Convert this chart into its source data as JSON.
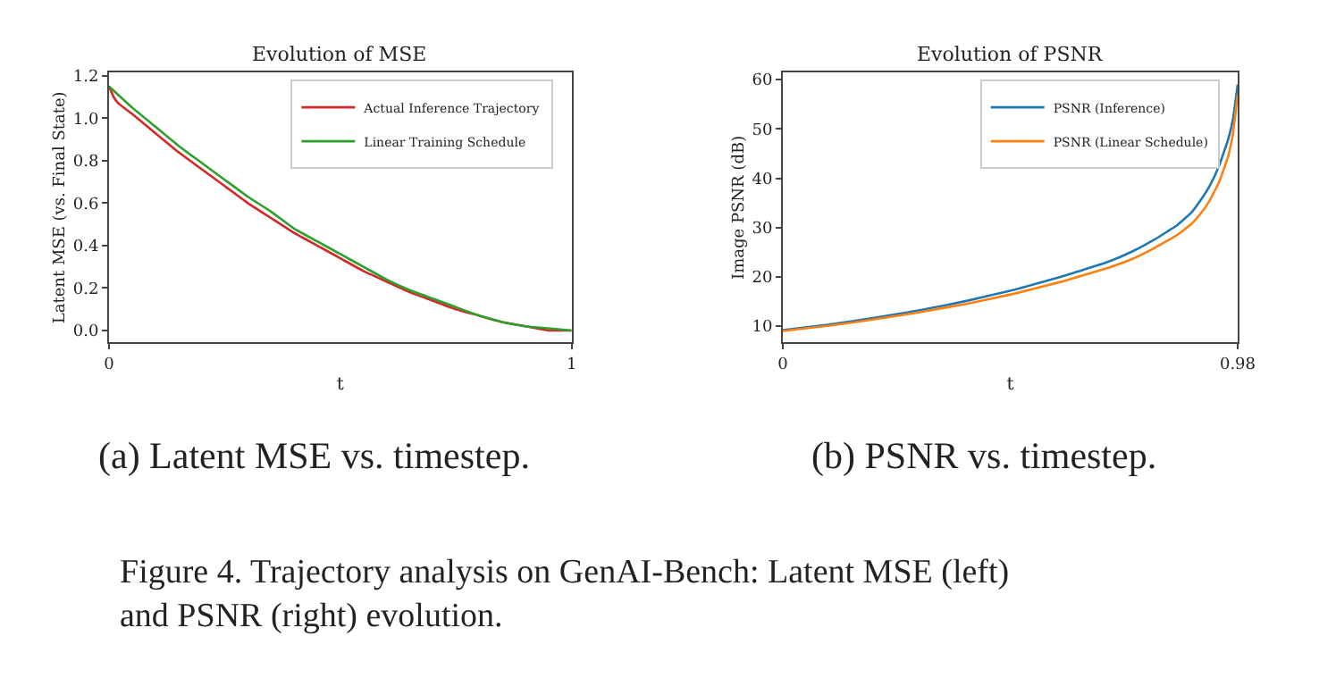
{
  "chart_data": [
    {
      "type": "line",
      "title": "Evolution of MSE",
      "xlabel": "t",
      "ylabel": "Latent MSE (vs. Final State)",
      "xlim": [
        0,
        1
      ],
      "xticks": [
        0,
        1
      ],
      "ylim": [
        -0.056,
        1.214
      ],
      "yticks": [
        {
          "value": 0,
          "label": "0.0"
        },
        0.2,
        0.4,
        0.6,
        0.8,
        {
          "value": 1,
          "label": "1.0"
        },
        1.2
      ],
      "legend": "top right",
      "series": [
        {
          "name": "Actual Inference Trajectory",
          "color": "#d62728",
          "x": [
            0,
            0.01,
            0.02,
            0.05,
            0.1,
            0.15,
            0.2,
            0.25,
            0.3,
            0.35,
            0.4,
            0.45,
            0.5,
            0.55,
            0.6,
            0.65,
            0.7,
            0.75,
            0.8,
            0.85,
            0.9,
            0.95,
            1
          ],
          "values": [
            1.15,
            1.1,
            1.07,
            1.02,
            0.93,
            0.84,
            0.76,
            0.68,
            0.6,
            0.53,
            0.46,
            0.4,
            0.34,
            0.28,
            0.23,
            0.18,
            0.14,
            0.1,
            0.07,
            0.04,
            0.02,
            0.0,
            0.0
          ]
        },
        {
          "name": "Linear Training Schedule",
          "color": "#2ca02c",
          "x": [
            0,
            0.05,
            0.1,
            0.15,
            0.2,
            0.25,
            0.3,
            0.35,
            0.4,
            0.45,
            0.5,
            0.55,
            0.6,
            0.65,
            0.7,
            0.75,
            0.8,
            0.85,
            0.9,
            0.95,
            1
          ],
          "values": [
            1.15,
            1.05,
            0.96,
            0.87,
            0.79,
            0.71,
            0.63,
            0.56,
            0.48,
            0.42,
            0.36,
            0.3,
            0.24,
            0.19,
            0.15,
            0.11,
            0.07,
            0.04,
            0.02,
            0.01,
            0.0
          ]
        }
      ],
      "annotations": [
        "(a) Latent MSE vs. timestep."
      ]
    },
    {
      "type": "line",
      "title": "Evolution of PSNR",
      "xlabel": "t",
      "ylabel": "Image PSNR (dB)",
      "xlim": [
        0,
        0.98
      ],
      "xticks": [
        0,
        0.98
      ],
      "ylim": [
        6.7,
        61.4
      ],
      "yticks": [
        10,
        20,
        30,
        40,
        50,
        60
      ],
      "legend": "top right",
      "series": [
        {
          "name": "PSNR (Inference)",
          "color": "#1f77b4",
          "x": [
            0,
            0.1,
            0.2,
            0.3,
            0.4,
            0.5,
            0.6,
            0.7,
            0.75,
            0.8,
            0.85,
            0.88,
            0.9,
            0.92,
            0.94,
            0.96,
            0.97,
            0.98
          ],
          "values": [
            9.2,
            10.3,
            11.7,
            13.3,
            15.2,
            17.4,
            20.0,
            23.0,
            25.0,
            27.5,
            30.5,
            33,
            35.5,
            38.5,
            42.5,
            48,
            52,
            59
          ]
        },
        {
          "name": "PSNR (Linear Schedule)",
          "color": "#ff7f0e",
          "x": [
            0,
            0.1,
            0.2,
            0.3,
            0.4,
            0.5,
            0.6,
            0.7,
            0.75,
            0.8,
            0.85,
            0.88,
            0.9,
            0.92,
            0.94,
            0.96,
            0.97,
            0.98
          ],
          "values": [
            9.0,
            10.1,
            11.4,
            12.9,
            14.6,
            16.6,
            19.0,
            21.8,
            23.5,
            25.8,
            28.5,
            30.7,
            32.8,
            35.5,
            39.2,
            44.5,
            49,
            57
          ]
        }
      ],
      "annotations": [
        "(b) PSNR vs. timestep.",
        "Figure 4. Trajectory analysis on GenAI-Bench: Latent MSE (left) and PSNR (right) evolution."
      ]
    }
  ]
}
